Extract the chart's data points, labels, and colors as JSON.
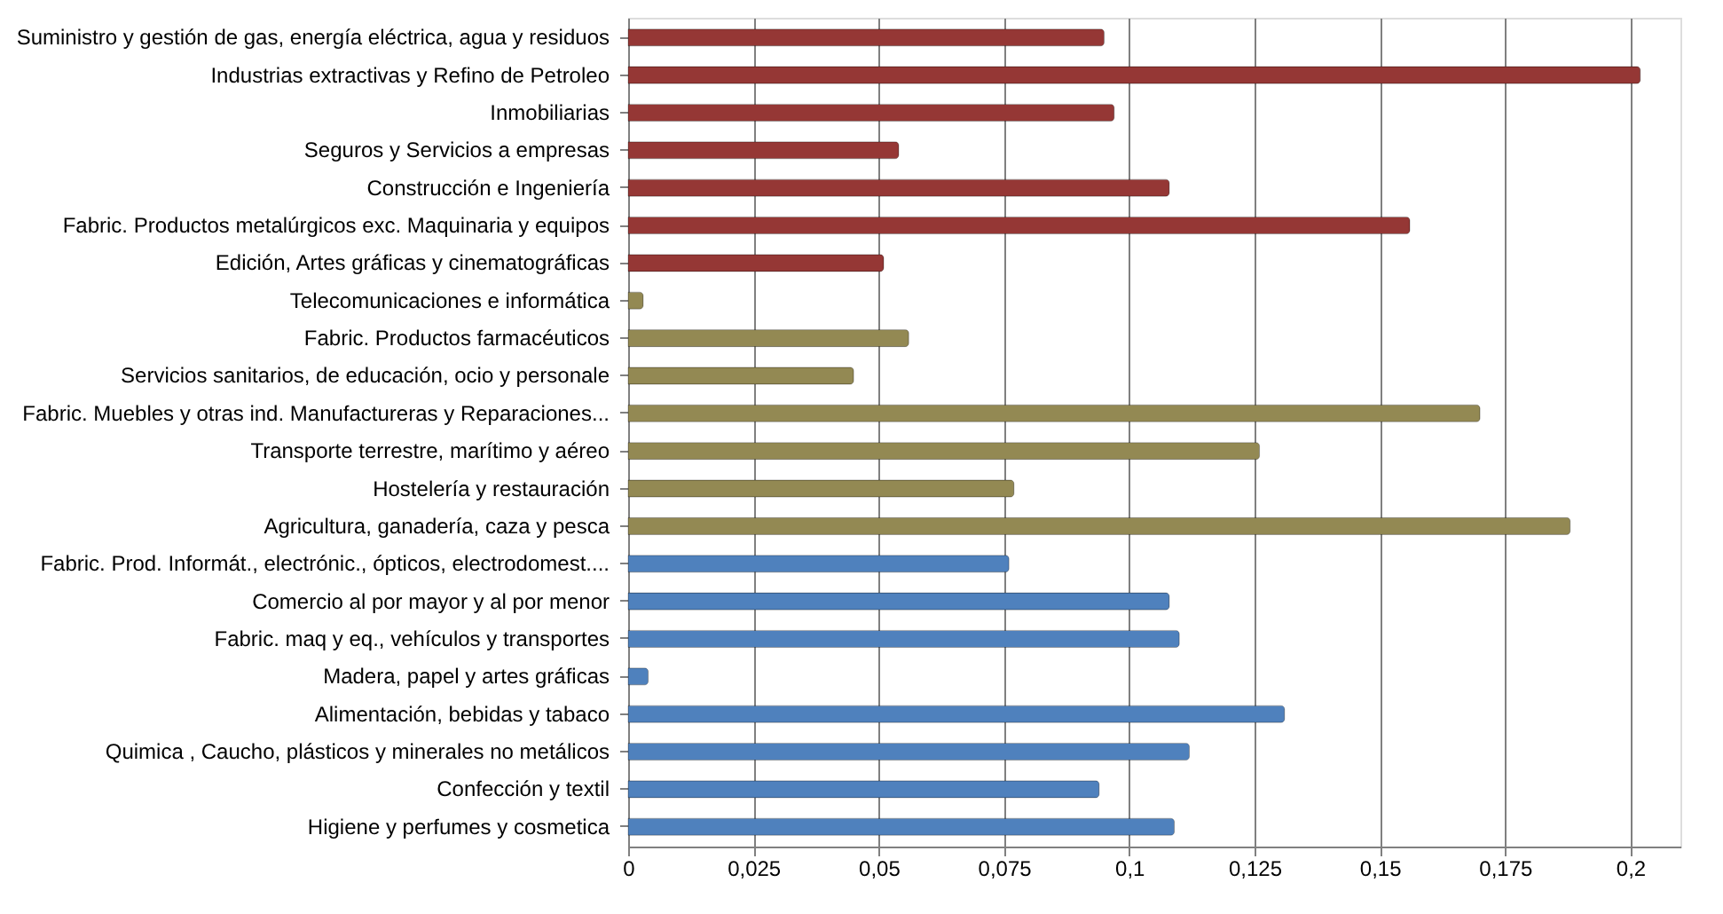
{
  "chart_data": {
    "type": "bar",
    "orientation": "horizontal",
    "categories": [
      "Suministro y gestión de gas, energía eléctrica, agua y residuos",
      "Industrias extractivas y Refino de Petroleo",
      "Inmobiliarias",
      "Seguros y Servicios a empresas",
      "Construcción e Ingeniería",
      "Fabric. Productos metalúrgicos exc. Maquinaria y equipos",
      "Edición, Artes gráficas y cinematográficas",
      "Telecomunicaciones e informática",
      "Fabric. Productos farmacéuticos ",
      "Servicios sanitarios, de educación, ocio y personale",
      "Fabric. Muebles y otras ind. Manufactureras y Reparaciones...",
      "Transporte terrestre, marítimo y aéreo",
      "Hostelería y restauración",
      "Agricultura, ganadería, caza y pesca",
      "Fabric. Prod. Informát., electrónic., ópticos, electrodomest....",
      "Comercio al por mayor y al por menor",
      "Fabric.  maq y eq., vehículos y transportes",
      "Madera, papel y artes gráficas",
      "Alimentación, bebidas y tabaco",
      "Quimica ,  Caucho, plásticos y minerales no metálicos",
      "Confección y textil",
      "Higiene y perfumes y cosmetica"
    ],
    "values": [
      0.095,
      0.202,
      0.097,
      0.054,
      0.108,
      0.156,
      0.051,
      0.003,
      0.056,
      0.045,
      0.17,
      0.126,
      0.077,
      0.188,
      0.076,
      0.108,
      0.11,
      0.004,
      0.131,
      0.112,
      0.094,
      0.109
    ],
    "colors": [
      "#953735",
      "#953735",
      "#953735",
      "#953735",
      "#953735",
      "#953735",
      "#953735",
      "#938953",
      "#938953",
      "#938953",
      "#938953",
      "#938953",
      "#938953",
      "#938953",
      "#4f81bd",
      "#4f81bd",
      "#4f81bd",
      "#4f81bd",
      "#4f81bd",
      "#4f81bd",
      "#4f81bd",
      "#4f81bd"
    ],
    "xlim": [
      0,
      0.21
    ],
    "xticks": [
      0,
      {
        "value": 0.025,
        "label": "0,025"
      },
      {
        "value": 0.05,
        "label": "0,05"
      },
      {
        "value": 0.075,
        "label": "0,075"
      },
      {
        "value": 0.1,
        "label": "0,1"
      },
      {
        "value": 0.125,
        "label": "0,125"
      },
      {
        "value": 0.15,
        "label": "0,15"
      },
      {
        "value": 0.175,
        "label": "0,175"
      },
      {
        "value": 0.2,
        "label": "0,2"
      }
    ],
    "grid": "x"
  }
}
